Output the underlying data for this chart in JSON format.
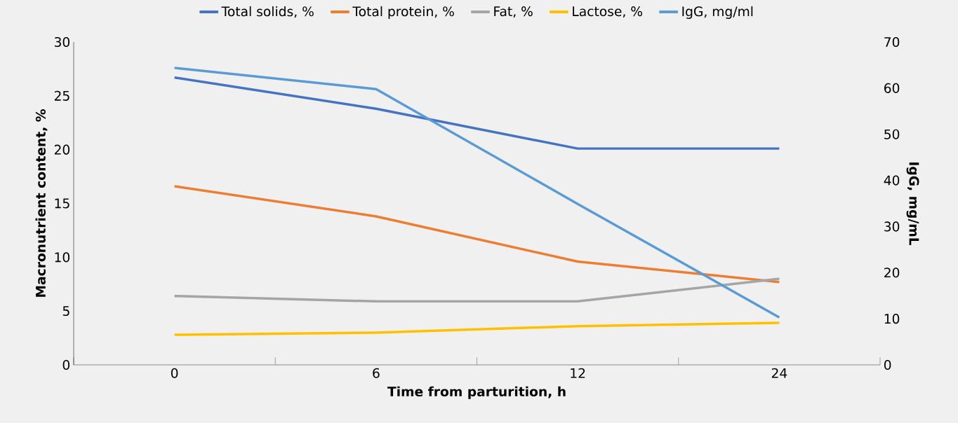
{
  "chart_data": {
    "type": "line",
    "xlabel": "Time from parturition, h",
    "ylabel": "Macronutrient content, %",
    "y2label": "IgG, mg/mL",
    "categories": [
      "0",
      "6",
      "12",
      "24"
    ],
    "series": [
      {
        "name": "Total solids, %",
        "color": "#4472c4",
        "values": [
          26.7,
          23.8,
          20.1,
          20.1
        ]
      },
      {
        "name": "Total protein, %",
        "color": "#ed7d31",
        "values": [
          16.6,
          13.8,
          9.6,
          7.7
        ]
      },
      {
        "name": "Fat, %",
        "color": "#a5a5a5",
        "values": [
          6.4,
          5.9,
          5.9,
          8.0
        ]
      },
      {
        "name": "Lactose, %",
        "color": "#ffc000",
        "values": [
          2.8,
          3.0,
          3.6,
          3.9
        ]
      },
      {
        "name": "IgG, mg/ml",
        "color": "#5b9bd5",
        "values": [
          64.4,
          59.8,
          34.9,
          10.3
        ],
        "axis": "y2"
      }
    ],
    "ylim": [
      0,
      30
    ],
    "yticks": [
      0,
      5,
      10,
      15,
      20,
      25,
      30
    ],
    "y2lim": [
      0,
      70
    ],
    "y2ticks": [
      0,
      10,
      20,
      30,
      40,
      50,
      60,
      70
    ],
    "grid": false,
    "legend": "top",
    "marker": "none",
    "line_style": "solid"
  }
}
